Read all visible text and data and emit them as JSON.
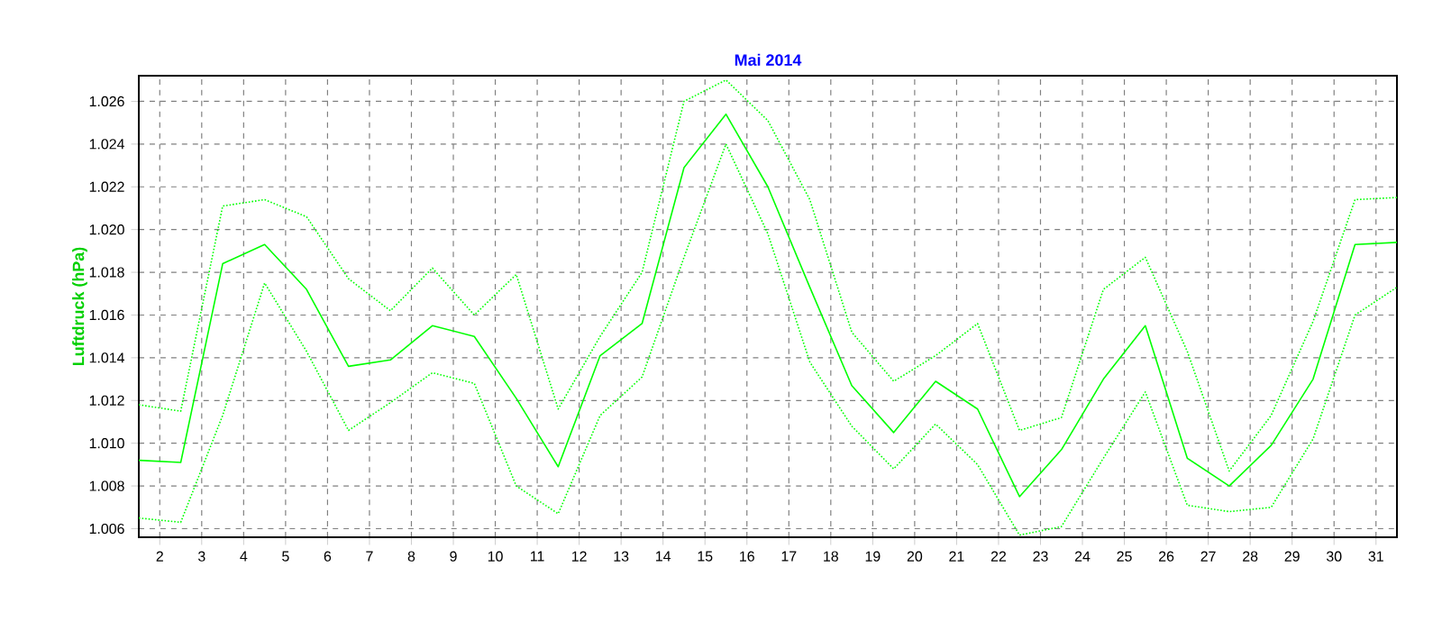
{
  "chart_data": {
    "type": "line",
    "title": "Mai 2014",
    "ylabel": "Luftdruck  (hPa)",
    "x": [
      1.5,
      2.5,
      3.5,
      4.5,
      5.5,
      6.5,
      7.5,
      8.5,
      9.5,
      10.5,
      11.5,
      12.5,
      13.5,
      14.5,
      15.5,
      16.5,
      17.5,
      18.5,
      19.5,
      20.5,
      21.5,
      22.5,
      23.5,
      24.5,
      25.5,
      26.5,
      27.5,
      28.5,
      29.5,
      30.5,
      31.5
    ],
    "series": [
      {
        "color": "#00ff00",
        "line_style": "dotted",
        "values": [
          1.0118,
          1.0115,
          1.0211,
          1.0214,
          1.0206,
          1.0177,
          1.0162,
          1.0182,
          1.016,
          1.0179,
          1.0116,
          1.015,
          1.018,
          1.026,
          1.027,
          1.0251,
          1.0214,
          1.0152,
          1.0129,
          1.0141,
          1.0156,
          1.0106,
          1.0112,
          1.0172,
          1.0187,
          1.0143,
          1.0087,
          1.0113,
          1.0157,
          1.0214,
          1.0215
        ]
      },
      {
        "color": "#00ff00",
        "line_style": "solid",
        "values": [
          1.0092,
          1.0091,
          1.0184,
          1.0193,
          1.0172,
          1.0136,
          1.0139,
          1.0155,
          1.015,
          1.0121,
          1.0089,
          1.0141,
          1.0156,
          1.0229,
          1.0254,
          1.022,
          1.0173,
          1.0127,
          1.0105,
          1.0129,
          1.0116,
          1.0075,
          1.0097,
          1.013,
          1.0155,
          1.0093,
          1.008,
          1.0099,
          1.013,
          1.0193,
          1.0194
        ]
      },
      {
        "color": "#00ff00",
        "line_style": "dotted",
        "values": [
          1.0065,
          1.0063,
          1.0113,
          1.0175,
          1.0143,
          1.0106,
          1.0119,
          1.0133,
          1.0128,
          1.008,
          1.0067,
          1.0113,
          1.0131,
          1.0187,
          1.024,
          1.0198,
          1.0138,
          1.0108,
          1.0088,
          1.0109,
          1.009,
          1.0057,
          1.0061,
          1.0093,
          1.0124,
          1.0071,
          1.0068,
          1.007,
          1.0102,
          1.016,
          1.0173
        ]
      }
    ],
    "xlim": [
      1.5,
      31.5
    ],
    "xticks": [
      2,
      3,
      4,
      5,
      6,
      7,
      8,
      9,
      10,
      11,
      12,
      13,
      14,
      15,
      16,
      17,
      18,
      19,
      20,
      21,
      22,
      23,
      24,
      25,
      26,
      27,
      28,
      29,
      30,
      31
    ],
    "ylim": [
      1.0056,
      1.0272
    ],
    "yticks": [
      1.006,
      1.008,
      {
        "value": 1.01,
        "label": "1.010"
      },
      1.012,
      1.014,
      1.016,
      1.018,
      {
        "value": 1.02,
        "label": "1.020"
      },
      1.022,
      1.024,
      1.026
    ],
    "grid": true,
    "marker": "none"
  }
}
